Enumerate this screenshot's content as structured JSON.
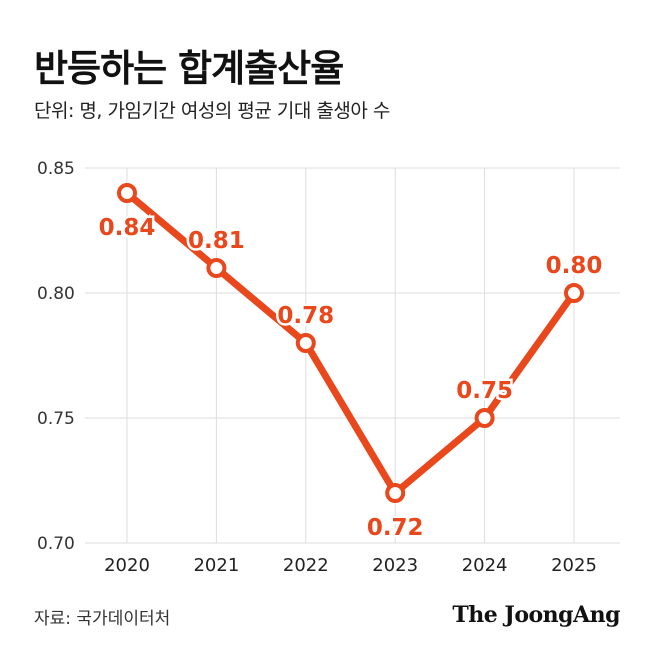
{
  "header": {
    "title": "반등하는 합계출산율",
    "subtitle": "단위: 명, 가임기간 여성의 평균 기대 출생아 수"
  },
  "footer": {
    "source": "자료: 국가데이터처",
    "brand": "The JoongAng"
  },
  "colors": {
    "line": "#e9471c",
    "label": "#e9471c",
    "grid": "#dddddd",
    "axis": "#333333"
  },
  "chart_data": {
    "type": "line",
    "title": "반등하는 합계출산율",
    "subtitle": "단위: 명, 가임기간 여성의 평균 기대 출생아 수",
    "xlabel": "",
    "ylabel": "",
    "categories": [
      "2020",
      "2021",
      "2022",
      "2023",
      "2024",
      "2025"
    ],
    "series": [
      {
        "name": "합계출산율",
        "values": [
          0.84,
          0.81,
          0.78,
          0.72,
          0.75,
          0.8
        ],
        "labels": [
          "0.84",
          "0.81",
          "0.78",
          "0.72",
          "0.75",
          "0.80"
        ]
      }
    ],
    "yticks": [
      "0.70",
      "0.75",
      "0.80",
      "0.85"
    ],
    "ylim": [
      0.7,
      0.85
    ],
    "grid": true,
    "legend": "none"
  }
}
